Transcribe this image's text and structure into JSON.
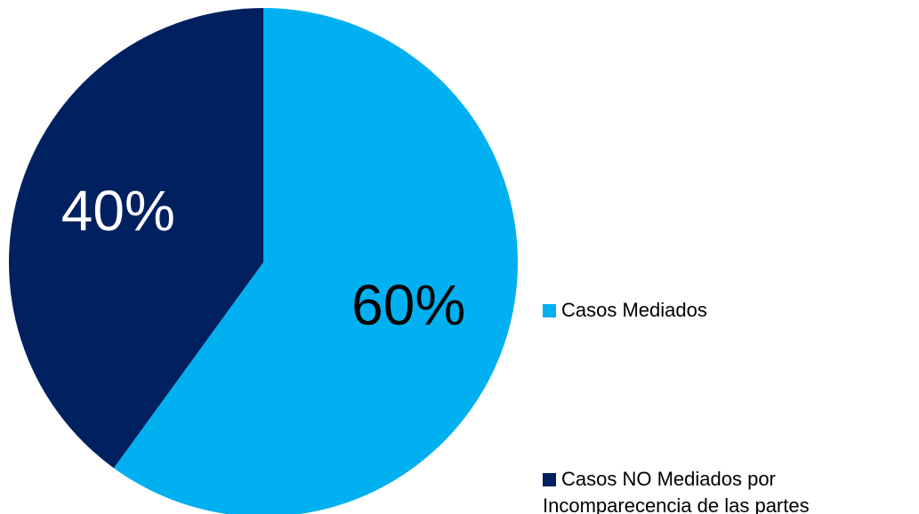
{
  "chart_data": {
    "type": "pie",
    "categories": [
      "Casos Mediados",
      "Casos NO Mediados por Incomparecencia de las partes"
    ],
    "values": [
      60,
      40
    ],
    "value_labels": [
      "60%",
      "40%"
    ],
    "colors": [
      "#00b0f0",
      "#002060"
    ],
    "label_colors": [
      "#000000",
      "#ffffff"
    ],
    "legend": "right"
  }
}
